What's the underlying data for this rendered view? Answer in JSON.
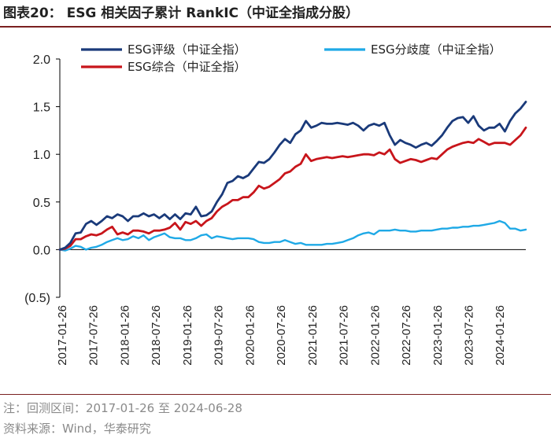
{
  "title": "图表20： ESG 相关因子累计 RankIC（中证全指成分股）",
  "note": "注：回测区间：2017-01-26 至 2024-06-28",
  "source": "资料来源：Wind，华泰研究",
  "colors": {
    "esg_rating": "#1a3a7a",
    "esg_divergence": "#1fa9e6",
    "esg_composite": "#c8151b",
    "axis": "#000000",
    "rule": "#7a2020"
  },
  "chart_data": {
    "type": "line",
    "title": "ESG 相关因子累计 RankIC（中证全指成分股）",
    "xlabel": "",
    "ylabel": "",
    "ylim": [
      -0.5,
      2.0
    ],
    "yticks": [
      2.0,
      1.5,
      1.0,
      0.5,
      0.0,
      -0.5
    ],
    "ytick_labels": [
      "2.0",
      "1.5",
      "1.0",
      "0.5",
      "0.0",
      "(0.5)"
    ],
    "x_tick_labels": [
      "2017-01-26",
      "2017-07-26",
      "2018-01-26",
      "2018-07-26",
      "2019-01-26",
      "2019-07-26",
      "2020-01-26",
      "2020-07-26",
      "2021-01-26",
      "2021-07-26",
      "2022-01-26",
      "2022-07-26",
      "2023-01-26",
      "2023-07-26",
      "2024-01-26"
    ],
    "x_range": [
      0,
      89
    ],
    "x": [
      0,
      1,
      2,
      3,
      4,
      5,
      6,
      7,
      8,
      9,
      10,
      11,
      12,
      13,
      14,
      15,
      16,
      17,
      18,
      19,
      20,
      21,
      22,
      23,
      24,
      25,
      26,
      27,
      28,
      29,
      30,
      31,
      32,
      33,
      34,
      35,
      36,
      37,
      38,
      39,
      40,
      41,
      42,
      43,
      44,
      45,
      46,
      47,
      48,
      49,
      50,
      51,
      52,
      53,
      54,
      55,
      56,
      57,
      58,
      59,
      60,
      61,
      62,
      63,
      64,
      65,
      66,
      67,
      68,
      69,
      70,
      71,
      72,
      73,
      74,
      75,
      76,
      77,
      78,
      79,
      80,
      81,
      82,
      83,
      84,
      85,
      86,
      87,
      88,
      89
    ],
    "series": [
      {
        "name": "ESG评级（中证全指）",
        "color": "#1a3a7a",
        "values": [
          0.0,
          0.02,
          0.07,
          0.17,
          0.18,
          0.27,
          0.3,
          0.26,
          0.3,
          0.35,
          0.33,
          0.37,
          0.35,
          0.3,
          0.35,
          0.35,
          0.38,
          0.35,
          0.37,
          0.33,
          0.37,
          0.32,
          0.37,
          0.32,
          0.38,
          0.37,
          0.45,
          0.35,
          0.36,
          0.4,
          0.5,
          0.58,
          0.7,
          0.72,
          0.77,
          0.75,
          0.78,
          0.85,
          0.92,
          0.91,
          0.95,
          1.02,
          1.1,
          1.16,
          1.12,
          1.21,
          1.25,
          1.35,
          1.28,
          1.3,
          1.33,
          1.32,
          1.32,
          1.33,
          1.32,
          1.31,
          1.33,
          1.3,
          1.25,
          1.3,
          1.32,
          1.3,
          1.33,
          1.2,
          1.1,
          1.15,
          1.12,
          1.1,
          1.07,
          1.1,
          1.12,
          1.09,
          1.14,
          1.2,
          1.28,
          1.35,
          1.38,
          1.39,
          1.33,
          1.4,
          1.3,
          1.25,
          1.28,
          1.28,
          1.32,
          1.24,
          1.35,
          1.43,
          1.48,
          1.55
        ]
      },
      {
        "name": "ESG分歧度（中证全指）",
        "color": "#1fa9e6",
        "values": [
          0.0,
          -0.01,
          0.01,
          0.04,
          0.03,
          0.0,
          0.02,
          0.03,
          0.05,
          0.08,
          0.1,
          0.12,
          0.1,
          0.11,
          0.14,
          0.12,
          0.15,
          0.1,
          0.13,
          0.15,
          0.17,
          0.13,
          0.12,
          0.12,
          0.1,
          0.1,
          0.12,
          0.15,
          0.16,
          0.12,
          0.14,
          0.13,
          0.12,
          0.11,
          0.12,
          0.12,
          0.12,
          0.11,
          0.08,
          0.07,
          0.07,
          0.08,
          0.08,
          0.1,
          0.08,
          0.06,
          0.07,
          0.05,
          0.05,
          0.05,
          0.05,
          0.06,
          0.06,
          0.07,
          0.08,
          0.1,
          0.12,
          0.15,
          0.17,
          0.18,
          0.16,
          0.2,
          0.2,
          0.2,
          0.21,
          0.2,
          0.2,
          0.19,
          0.19,
          0.2,
          0.2,
          0.2,
          0.21,
          0.22,
          0.22,
          0.23,
          0.23,
          0.24,
          0.24,
          0.25,
          0.25,
          0.26,
          0.27,
          0.28,
          0.3,
          0.28,
          0.22,
          0.22,
          0.2,
          0.21
        ]
      },
      {
        "name": "ESG综合（中证全指）",
        "color": "#c8151b",
        "values": [
          0.0,
          0.01,
          0.04,
          0.11,
          0.11,
          0.14,
          0.16,
          0.15,
          0.17,
          0.21,
          0.24,
          0.16,
          0.18,
          0.16,
          0.2,
          0.2,
          0.19,
          0.17,
          0.2,
          0.2,
          0.21,
          0.23,
          0.28,
          0.21,
          0.29,
          0.27,
          0.3,
          0.25,
          0.3,
          0.33,
          0.4,
          0.45,
          0.48,
          0.52,
          0.52,
          0.55,
          0.55,
          0.6,
          0.67,
          0.64,
          0.66,
          0.7,
          0.74,
          0.8,
          0.82,
          0.87,
          0.9,
          1.0,
          0.93,
          0.95,
          0.96,
          0.97,
          0.96,
          0.97,
          0.98,
          0.97,
          0.98,
          0.99,
          1.0,
          1.0,
          0.99,
          1.02,
          1.0,
          1.05,
          0.95,
          0.91,
          0.93,
          0.95,
          0.94,
          0.92,
          0.94,
          0.96,
          0.95,
          1.0,
          1.05,
          1.08,
          1.1,
          1.12,
          1.13,
          1.12,
          1.16,
          1.13,
          1.1,
          1.12,
          1.12,
          1.12,
          1.1,
          1.15,
          1.2,
          1.28
        ]
      }
    ],
    "legend": [
      "ESG评级（中证全指）",
      "ESG分歧度（中证全指）",
      "ESG综合（中证全指）"
    ]
  }
}
